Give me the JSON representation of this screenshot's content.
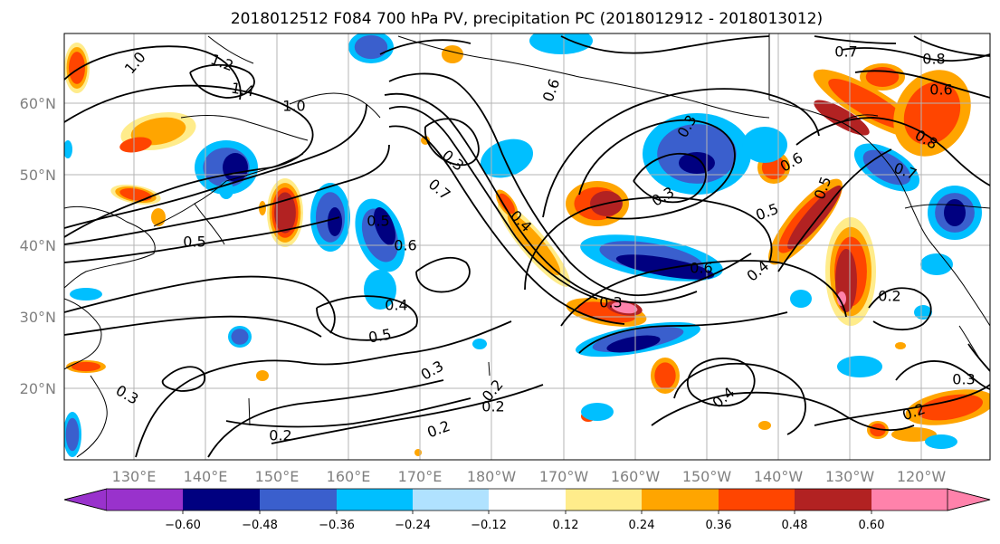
{
  "title": "2018012512 F084 700 hPa PV, precipitation PC (2018012912 - 2018013012)",
  "map": {
    "lon_labels": [
      "130°E",
      "140°E",
      "150°E",
      "160°E",
      "170°E",
      "180°W",
      "170°W",
      "160°W",
      "150°W",
      "140°W",
      "130°W",
      "120°W"
    ],
    "lat_labels": [
      "60°N",
      "50°N",
      "40°N",
      "30°N",
      "20°N"
    ],
    "contour_labels": [
      "1.0",
      "1.2",
      "1.4",
      "1.0",
      "0.5",
      "0.7",
      "0.3",
      "0.4",
      "0.6",
      "0.3",
      "0.5",
      "0.2",
      "0.2",
      "0.5",
      "0.3",
      "0.2",
      "0.6",
      "0.3",
      "0.4",
      "0.4",
      "0.3",
      "0.5",
      "0.6",
      "0.5",
      "0.6",
      "0.7",
      "0.8",
      "0.7",
      "0.8",
      "0.6",
      "0.2",
      "0.2",
      "0.3",
      "0.2",
      "0.3",
      "0.4"
    ]
  },
  "colorbar": {
    "colors": [
      "#9932cc",
      "#000080",
      "#3a5fcd",
      "#00bfff",
      "#b0e2ff",
      "#ffffff",
      "#ffec8b",
      "#ffa500",
      "#ff4500",
      "#b22222",
      "#ff82ab"
    ],
    "tick_labels": [
      "−0.60",
      "−0.48",
      "−0.36",
      "−0.24",
      "−0.12",
      "0.12",
      "0.24",
      "0.36",
      "0.48",
      "0.60"
    ]
  }
}
